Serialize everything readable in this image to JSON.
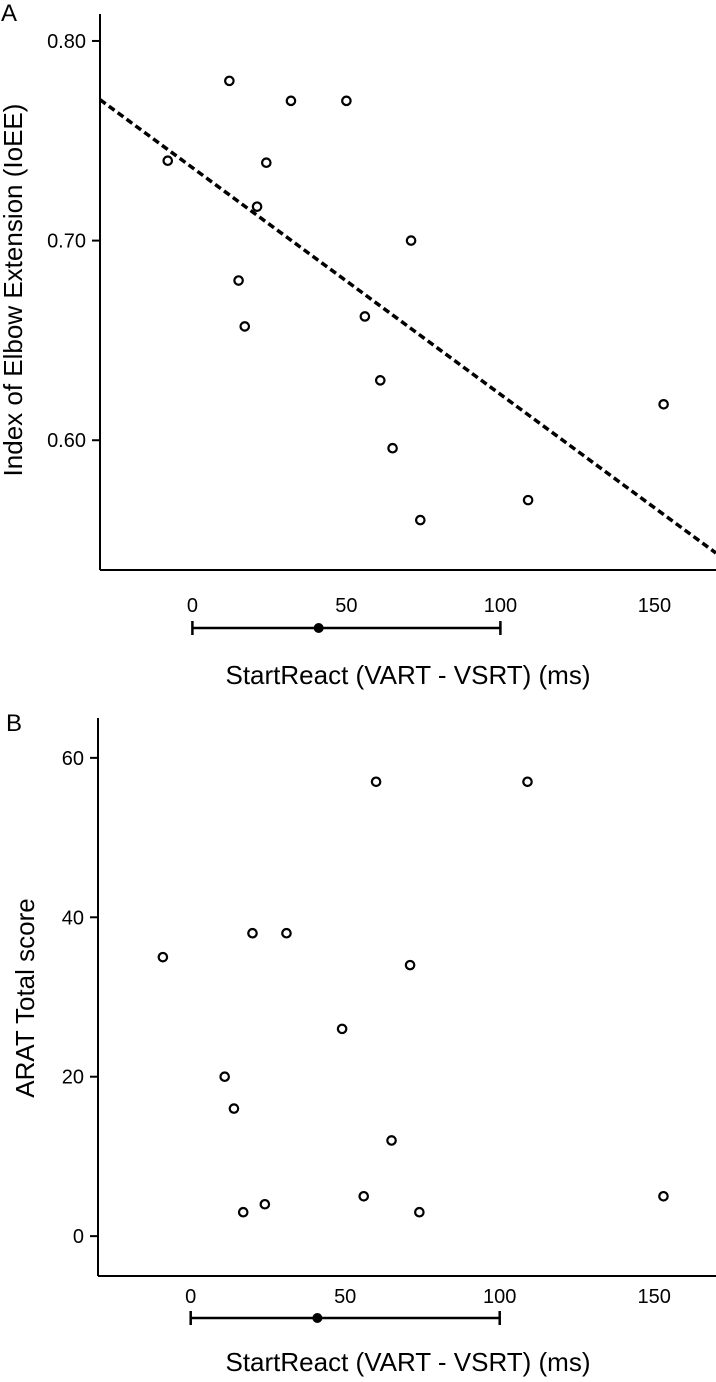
{
  "chart_data": [
    {
      "type": "scatter",
      "panel_label": "A",
      "xlabel": "StartReact (VART - VSRT) (ms)",
      "ylabel": "Index of Elbow Extension (IoEE)",
      "xlim": [
        -30,
        170
      ],
      "ylim": [
        0.535,
        0.8135
      ],
      "x_ticks": [
        0,
        50,
        100,
        150
      ],
      "y_ticks": [
        0.6,
        0.7,
        0.8
      ],
      "x_tick_labels": [
        "0",
        "50",
        "100",
        "150"
      ],
      "y_tick_labels": [
        "0.60",
        "0.70",
        "0.80"
      ],
      "points": [
        {
          "x": -8,
          "y": 0.74
        },
        {
          "x": 12,
          "y": 0.78
        },
        {
          "x": 15,
          "y": 0.68
        },
        {
          "x": 17,
          "y": 0.657
        },
        {
          "x": 21,
          "y": 0.717
        },
        {
          "x": 24,
          "y": 0.739
        },
        {
          "x": 32,
          "y": 0.77
        },
        {
          "x": 50,
          "y": 0.77
        },
        {
          "x": 56,
          "y": 0.662
        },
        {
          "x": 61,
          "y": 0.63
        },
        {
          "x": 65,
          "y": 0.596
        },
        {
          "x": 71,
          "y": 0.7
        },
        {
          "x": 74,
          "y": 0.56
        },
        {
          "x": 109,
          "y": 0.57
        },
        {
          "x": 153,
          "y": 0.618
        }
      ],
      "fit_line": {
        "x": [
          -30,
          170
        ],
        "y": [
          0.7706,
          0.5435
        ],
        "style": "dashed"
      },
      "summary_bar": {
        "min": 0,
        "max": 100,
        "mean": 41
      }
    },
    {
      "type": "scatter",
      "panel_label": "B",
      "xlabel": "StartReact (VART - VSRT) (ms)",
      "ylabel": "ARAT Total score",
      "xlim": [
        -30,
        170
      ],
      "ylim": [
        -5,
        65
      ],
      "x_ticks": [
        0,
        50,
        100,
        150
      ],
      "y_ticks": [
        0,
        20,
        40,
        60
      ],
      "x_tick_labels": [
        "0",
        "50",
        "100",
        "150"
      ],
      "y_tick_labels": [
        "0",
        "20",
        "40",
        "60"
      ],
      "points": [
        {
          "x": -9,
          "y": 35
        },
        {
          "x": 11,
          "y": 20
        },
        {
          "x": 14,
          "y": 16
        },
        {
          "x": 17,
          "y": 3
        },
        {
          "x": 20,
          "y": 38
        },
        {
          "x": 24,
          "y": 4
        },
        {
          "x": 31,
          "y": 38
        },
        {
          "x": 49,
          "y": 26
        },
        {
          "x": 56,
          "y": 5
        },
        {
          "x": 60,
          "y": 57
        },
        {
          "x": 65,
          "y": 12
        },
        {
          "x": 71,
          "y": 34
        },
        {
          "x": 74,
          "y": 3
        },
        {
          "x": 109,
          "y": 57
        },
        {
          "x": 153,
          "y": 5
        }
      ],
      "summary_bar": {
        "min": 0,
        "max": 100,
        "mean": 41
      }
    }
  ]
}
